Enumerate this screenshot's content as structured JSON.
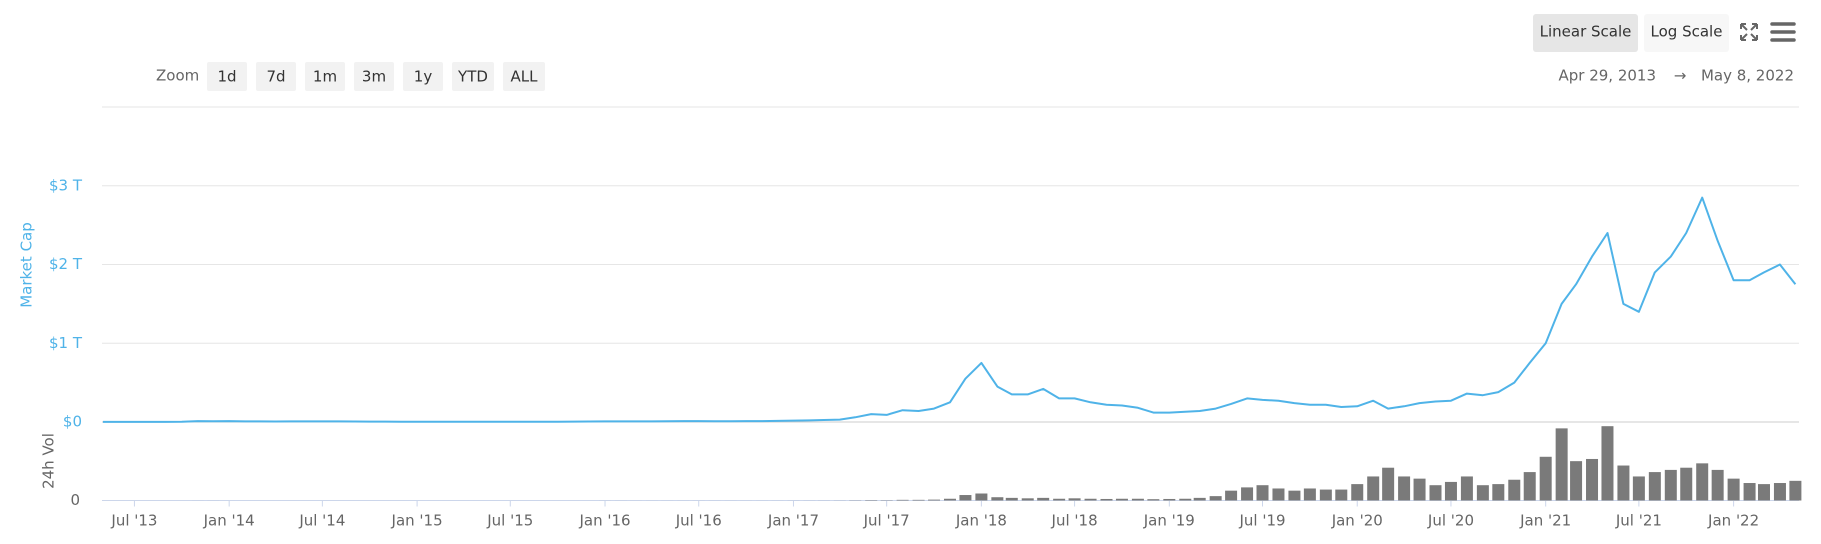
{
  "toolbar": {
    "zoom_label": "Zoom",
    "zoom_buttons": [
      "1d",
      "7d",
      "1m",
      "3m",
      "1y",
      "YTD",
      "ALL"
    ],
    "scale_buttons": [
      "Linear Scale",
      "Log Scale"
    ],
    "active_scale": "Linear Scale",
    "range": {
      "from": "Apr 29, 2013",
      "arrow": "→",
      "to": "May 8, 2022"
    }
  },
  "chart_data": {
    "type": "line",
    "x": [
      "2013-05",
      "2013-06",
      "2013-07",
      "2013-08",
      "2013-09",
      "2013-10",
      "2013-11",
      "2013-12",
      "2014-01",
      "2014-02",
      "2014-03",
      "2014-04",
      "2014-05",
      "2014-06",
      "2014-07",
      "2014-08",
      "2014-09",
      "2014-10",
      "2014-11",
      "2014-12",
      "2015-01",
      "2015-02",
      "2015-03",
      "2015-04",
      "2015-05",
      "2015-06",
      "2015-07",
      "2015-08",
      "2015-09",
      "2015-10",
      "2015-11",
      "2015-12",
      "2016-01",
      "2016-02",
      "2016-03",
      "2016-04",
      "2016-05",
      "2016-06",
      "2016-07",
      "2016-08",
      "2016-09",
      "2016-10",
      "2016-11",
      "2016-12",
      "2017-01",
      "2017-02",
      "2017-03",
      "2017-04",
      "2017-05",
      "2017-06",
      "2017-07",
      "2017-08",
      "2017-09",
      "2017-10",
      "2017-11",
      "2017-12",
      "2018-01",
      "2018-02",
      "2018-03",
      "2018-04",
      "2018-05",
      "2018-06",
      "2018-07",
      "2018-08",
      "2018-09",
      "2018-10",
      "2018-11",
      "2018-12",
      "2019-01",
      "2019-02",
      "2019-03",
      "2019-04",
      "2019-05",
      "2019-06",
      "2019-07",
      "2019-08",
      "2019-09",
      "2019-10",
      "2019-11",
      "2019-12",
      "2020-01",
      "2020-02",
      "2020-03",
      "2020-04",
      "2020-05",
      "2020-06",
      "2020-07",
      "2020-08",
      "2020-09",
      "2020-10",
      "2020-11",
      "2020-12",
      "2021-01",
      "2021-02",
      "2021-03",
      "2021-04",
      "2021-05",
      "2021-06",
      "2021-07",
      "2021-08",
      "2021-09",
      "2021-10",
      "2021-11",
      "2021-12",
      "2022-01",
      "2022-02",
      "2022-03",
      "2022-04",
      "2022-05"
    ],
    "xlim": [
      "2013-04-29",
      "2022-05-08"
    ],
    "xticks": [
      {
        "value": "2013-07",
        "label": "Jul '13"
      },
      {
        "value": "2014-01",
        "label": "Jan '14"
      },
      {
        "value": "2014-07",
        "label": "Jul '14"
      },
      {
        "value": "2015-01",
        "label": "Jan '15"
      },
      {
        "value": "2015-07",
        "label": "Jul '15"
      },
      {
        "value": "2016-01",
        "label": "Jan '16"
      },
      {
        "value": "2016-07",
        "label": "Jul '16"
      },
      {
        "value": "2017-01",
        "label": "Jan '17"
      },
      {
        "value": "2017-07",
        "label": "Jul '17"
      },
      {
        "value": "2018-01",
        "label": "Jan '18"
      },
      {
        "value": "2018-07",
        "label": "Jul '18"
      },
      {
        "value": "2019-01",
        "label": "Jan '19"
      },
      {
        "value": "2019-07",
        "label": "Jul '19"
      },
      {
        "value": "2020-01",
        "label": "Jan '20"
      },
      {
        "value": "2020-07",
        "label": "Jul '20"
      },
      {
        "value": "2021-01",
        "label": "Jan '21"
      },
      {
        "value": "2021-07",
        "label": "Jul '21"
      },
      {
        "value": "2022-01",
        "label": "Jan '22"
      }
    ],
    "ylim": [
      0,
      4
    ],
    "yticks": [
      {
        "value": 0,
        "label": "$0"
      },
      {
        "value": 1,
        "label": "$1 T"
      },
      {
        "value": 2,
        "label": "$2 T"
      },
      {
        "value": 3,
        "label": "$3 T"
      }
    ],
    "y2lim": [
      0,
      350
    ],
    "y2ticks": [
      0
    ],
    "grid": true,
    "series": [
      {
        "name": "Market Cap",
        "color": "#4fb3e8",
        "values": [
          0.0015,
          0.0012,
          0.001,
          0.0012,
          0.0015,
          0.002,
          0.012,
          0.01,
          0.011,
          0.008,
          0.007,
          0.006,
          0.007,
          0.008,
          0.008,
          0.007,
          0.006,
          0.005,
          0.005,
          0.004,
          0.004,
          0.003,
          0.004,
          0.003,
          0.003,
          0.003,
          0.004,
          0.004,
          0.003,
          0.004,
          0.005,
          0.006,
          0.007,
          0.007,
          0.008,
          0.008,
          0.009,
          0.012,
          0.011,
          0.01,
          0.01,
          0.011,
          0.012,
          0.014,
          0.018,
          0.02,
          0.025,
          0.03,
          0.06,
          0.1,
          0.09,
          0.15,
          0.14,
          0.17,
          0.25,
          0.55,
          0.75,
          0.45,
          0.35,
          0.35,
          0.42,
          0.3,
          0.3,
          0.25,
          0.22,
          0.21,
          0.18,
          0.12,
          0.12,
          0.13,
          0.14,
          0.17,
          0.23,
          0.3,
          0.28,
          0.27,
          0.24,
          0.22,
          0.22,
          0.19,
          0.2,
          0.27,
          0.17,
          0.2,
          0.24,
          0.26,
          0.27,
          0.36,
          0.34,
          0.38,
          0.5,
          0.75,
          1.0,
          1.5,
          1.75,
          2.1,
          2.4,
          1.5,
          1.4,
          1.9,
          2.1,
          2.4,
          2.85,
          2.3,
          1.8,
          1.8,
          1.9,
          2.0,
          1.75
        ]
      },
      {
        "name": "24h Vol",
        "color": "#7a7a7a",
        "type": "bar",
        "axis": "y2",
        "values": [
          0.02,
          0.02,
          0.02,
          0.02,
          0.02,
          0.03,
          0.1,
          0.1,
          0.03,
          0.03,
          0.03,
          0.03,
          0.03,
          0.03,
          0.03,
          0.03,
          0.03,
          0.03,
          0.03,
          0.03,
          0.03,
          0.03,
          0.03,
          0.03,
          0.03,
          0.03,
          0.03,
          0.03,
          0.03,
          0.03,
          0.03,
          0.03,
          0.1,
          0.1,
          0.1,
          0.1,
          0.1,
          0.1,
          0.1,
          0.1,
          0.1,
          0.1,
          0.1,
          0.1,
          0.2,
          0.2,
          0.3,
          0.4,
          1,
          2,
          1.5,
          3,
          3,
          4,
          8,
          25,
          32,
          15,
          12,
          10,
          12,
          8,
          10,
          8,
          7,
          8,
          8,
          6,
          7,
          8,
          12,
          20,
          45,
          60,
          70,
          55,
          45,
          55,
          50,
          50,
          75,
          110,
          150,
          110,
          100,
          70,
          85,
          110,
          70,
          75,
          95,
          130,
          200,
          330,
          180,
          190,
          340,
          160,
          110,
          130,
          140,
          150,
          170,
          140,
          100,
          80,
          75,
          80,
          90
        ]
      }
    ]
  }
}
